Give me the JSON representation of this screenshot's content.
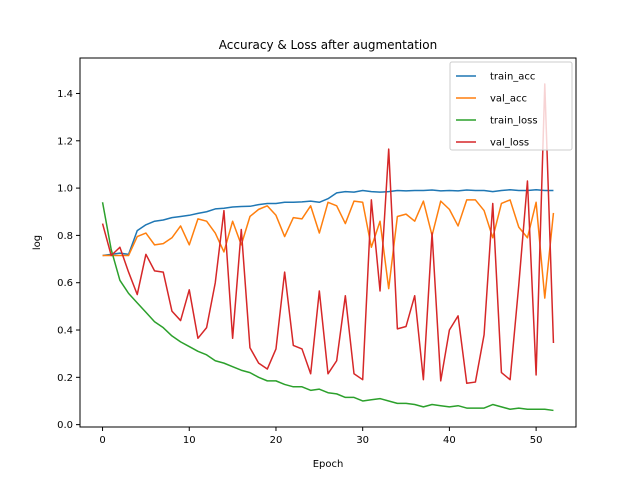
{
  "chart_data": {
    "type": "line",
    "title": "Accuracy &  Loss after augmentation",
    "xlabel": "Epoch",
    "ylabel": "log",
    "xlim": [
      -2.6,
      54.6
    ],
    "ylim": [
      -0.01,
      1.55
    ],
    "xticks": [
      0,
      10,
      20,
      30,
      40,
      50
    ],
    "yticks": [
      0.0,
      0.2,
      0.4,
      0.6,
      0.8,
      1.0,
      1.2,
      1.4
    ],
    "ytick_labels": [
      "0.0",
      "0.2",
      "0.4",
      "0.6",
      "0.8",
      "1.0",
      "1.2",
      "1.4"
    ],
    "grid": false,
    "legend_position": "top-right",
    "x": [
      0,
      1,
      2,
      3,
      4,
      5,
      6,
      7,
      8,
      9,
      10,
      11,
      12,
      13,
      14,
      15,
      16,
      17,
      18,
      19,
      20,
      21,
      22,
      23,
      24,
      25,
      26,
      27,
      28,
      29,
      30,
      31,
      32,
      33,
      34,
      35,
      36,
      37,
      38,
      39,
      40,
      41,
      42,
      43,
      44,
      45,
      46,
      47,
      48,
      49,
      50,
      51,
      52
    ],
    "series": [
      {
        "name": "train_acc",
        "color": "#1f77b4",
        "values": [
          0.715,
          0.72,
          0.725,
          0.72,
          0.82,
          0.845,
          0.86,
          0.865,
          0.875,
          0.88,
          0.885,
          0.893,
          0.9,
          0.912,
          0.915,
          0.92,
          0.922,
          0.923,
          0.93,
          0.935,
          0.935,
          0.94,
          0.94,
          0.942,
          0.945,
          0.94,
          0.955,
          0.98,
          0.985,
          0.983,
          0.99,
          0.985,
          0.983,
          0.985,
          0.99,
          0.988,
          0.99,
          0.99,
          0.992,
          0.988,
          0.99,
          0.988,
          0.992,
          0.99,
          0.99,
          0.985,
          0.99,
          0.993,
          0.99,
          0.99,
          0.993,
          0.99,
          0.99
        ]
      },
      {
        "name": "val_acc",
        "color": "#ff7f0e",
        "values": [
          0.715,
          0.715,
          0.715,
          0.715,
          0.795,
          0.81,
          0.76,
          0.765,
          0.79,
          0.84,
          0.76,
          0.87,
          0.86,
          0.81,
          0.73,
          0.86,
          0.76,
          0.88,
          0.91,
          0.925,
          0.885,
          0.795,
          0.875,
          0.87,
          0.925,
          0.81,
          0.94,
          0.925,
          0.85,
          0.945,
          0.94,
          0.75,
          0.86,
          0.575,
          0.88,
          0.89,
          0.86,
          0.945,
          0.8,
          0.945,
          0.91,
          0.84,
          0.95,
          0.95,
          0.905,
          0.79,
          0.935,
          0.95,
          0.835,
          0.79,
          0.94,
          0.535,
          0.895
        ]
      },
      {
        "name": "train_loss",
        "color": "#2ca02c",
        "values": [
          0.94,
          0.74,
          0.61,
          0.555,
          0.515,
          0.475,
          0.435,
          0.41,
          0.375,
          0.35,
          0.33,
          0.31,
          0.295,
          0.27,
          0.26,
          0.245,
          0.23,
          0.22,
          0.2,
          0.185,
          0.185,
          0.17,
          0.16,
          0.16,
          0.145,
          0.15,
          0.135,
          0.13,
          0.115,
          0.115,
          0.1,
          0.105,
          0.11,
          0.1,
          0.09,
          0.09,
          0.085,
          0.075,
          0.085,
          0.08,
          0.075,
          0.08,
          0.07,
          0.07,
          0.07,
          0.085,
          0.075,
          0.065,
          0.07,
          0.065,
          0.065,
          0.065,
          0.06
        ]
      },
      {
        "name": "val_loss",
        "color": "#d62728",
        "values": [
          0.85,
          0.715,
          0.75,
          0.645,
          0.55,
          0.72,
          0.65,
          0.645,
          0.48,
          0.44,
          0.57,
          0.365,
          0.41,
          0.6,
          0.905,
          0.365,
          0.825,
          0.325,
          0.26,
          0.235,
          0.32,
          0.645,
          0.335,
          0.32,
          0.215,
          0.565,
          0.215,
          0.27,
          0.545,
          0.215,
          0.19,
          0.95,
          0.565,
          1.165,
          0.405,
          0.415,
          0.545,
          0.19,
          0.81,
          0.185,
          0.4,
          0.46,
          0.175,
          0.18,
          0.38,
          0.935,
          0.22,
          0.19,
          0.59,
          1.03,
          0.21,
          1.44,
          0.345
        ]
      }
    ]
  }
}
